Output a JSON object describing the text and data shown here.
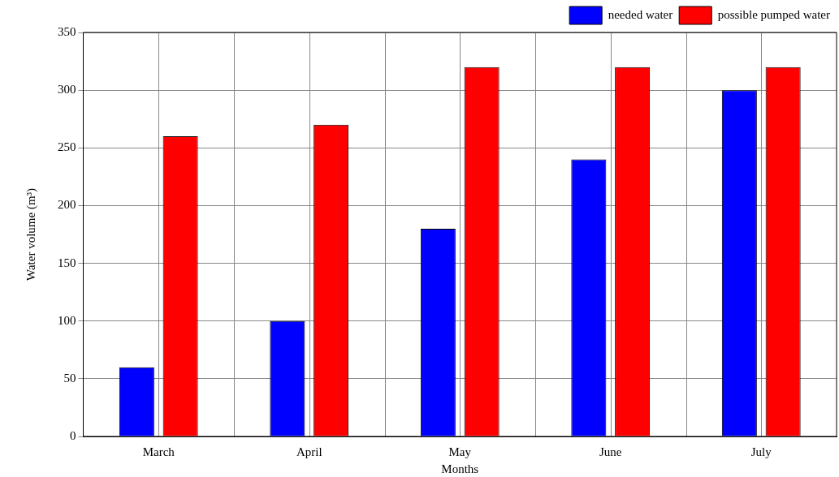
{
  "chart_data": {
    "type": "bar",
    "xlabel": "Months",
    "ylabel": "Water volume (m³)",
    "categories": [
      "March",
      "April",
      "May",
      "June",
      "July"
    ],
    "series": [
      {
        "name": "needed water",
        "color": "#0000ff",
        "values": [
          60,
          100,
          180,
          240,
          300
        ]
      },
      {
        "name": "possible pumped water",
        "color": "#ff0000",
        "values": [
          260,
          270,
          320,
          320,
          320
        ]
      }
    ],
    "ylim": [
      0,
      350
    ],
    "yticks": [
      0,
      50,
      100,
      150,
      200,
      250,
      300,
      350
    ],
    "grid": true,
    "legend": "top right"
  }
}
